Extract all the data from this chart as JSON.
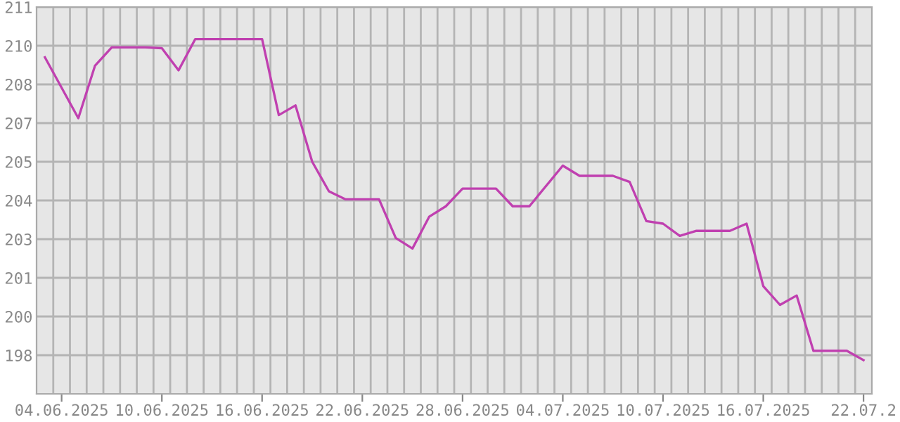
{
  "chart_data": {
    "type": "line",
    "x": [
      "2025-06-03",
      "2025-06-05",
      "2025-06-06",
      "2025-06-07",
      "2025-06-09",
      "2025-06-10",
      "2025-06-11",
      "2025-06-12",
      "2025-06-16",
      "2025-06-17",
      "2025-06-18",
      "2025-06-19",
      "2025-06-20",
      "2025-06-21",
      "2025-06-23",
      "2025-06-24",
      "2025-06-25",
      "2025-06-26",
      "2025-06-27",
      "2025-06-28",
      "2025-06-30",
      "2025-07-01",
      "2025-07-02",
      "2025-07-04",
      "2025-07-05",
      "2025-07-07",
      "2025-07-08",
      "2025-07-09",
      "2025-07-10",
      "2025-07-11",
      "2025-07-12",
      "2025-07-14",
      "2025-07-15",
      "2025-07-16",
      "2025-07-17",
      "2025-07-18",
      "2025-07-19",
      "2025-07-21",
      "2025-07-22"
    ],
    "series": [
      {
        "color": "#c040b0",
        "values": [
          209.08,
          206.88,
          208.78,
          209.44,
          209.44,
          209.41,
          208.61,
          209.74,
          209.74,
          206.99,
          207.34,
          205.3,
          204.23,
          203.94,
          203.94,
          202.54,
          202.16,
          203.31,
          203.69,
          204.33,
          204.33,
          203.69,
          203.69,
          205.16,
          204.79,
          204.79,
          204.57,
          203.15,
          203.06,
          202.62,
          202.8,
          202.8,
          203.06,
          200.8,
          200.12,
          200.46,
          198.46,
          198.46,
          198.12
        ]
      }
    ],
    "ylim": [
      196.9,
      210.9
    ],
    "yticks": [
      {
        "value": 210.9,
        "label": "211"
      },
      {
        "value": 209.5,
        "label": "210"
      },
      {
        "value": 208.1,
        "label": "208"
      },
      {
        "value": 206.7,
        "label": "207"
      },
      {
        "value": 205.3,
        "label": "205"
      },
      {
        "value": 203.9,
        "label": "204"
      },
      {
        "value": 202.5,
        "label": "203"
      },
      {
        "value": 201.1,
        "label": "201"
      },
      {
        "value": 199.7,
        "label": "200"
      },
      {
        "value": 198.3,
        "label": "198"
      }
    ],
    "xlim": [
      "2025-06-02T12:00",
      "2025-07-22T12:00"
    ],
    "xticks": [
      {
        "value": "2025-06-04",
        "label": "04.06.2025"
      },
      {
        "value": "2025-06-10",
        "label": "10.06.2025"
      },
      {
        "value": "2025-06-16",
        "label": "16.06.2025"
      },
      {
        "value": "2025-06-22",
        "label": "22.06.2025"
      },
      {
        "value": "2025-06-28",
        "label": "28.06.2025"
      },
      {
        "value": "2025-07-04",
        "label": "04.07.2025"
      },
      {
        "value": "2025-07-10",
        "label": "10.07.2025"
      },
      {
        "value": "2025-07-16",
        "label": "16.07.2025"
      },
      {
        "value": "2025-07-22",
        "label": "22.07.2"
      },
      {
        "value": "2025-06-03T12:00",
        "label": null
      },
      {
        "value": "2025-06-04T12:00",
        "label": null
      },
      {
        "value": "2025-06-05T12:00",
        "label": null
      },
      {
        "value": "2025-06-06T12:00",
        "label": null
      },
      {
        "value": "2025-06-07T12:00",
        "label": null
      },
      {
        "value": "2025-06-08T12:00",
        "label": null
      },
      {
        "value": "2025-06-09T12:00",
        "label": null
      },
      {
        "value": "2025-06-10T12:00",
        "label": null
      },
      {
        "value": "2025-06-11T12:00",
        "label": null
      },
      {
        "value": "2025-06-12T12:00",
        "label": null
      },
      {
        "value": "2025-06-13T12:00",
        "label": null
      },
      {
        "value": "2025-06-14T12:00",
        "label": null
      },
      {
        "value": "2025-06-15T12:00",
        "label": null
      },
      {
        "value": "2025-06-16T12:00",
        "label": null
      },
      {
        "value": "2025-06-17T12:00",
        "label": null
      },
      {
        "value": "2025-06-18T12:00",
        "label": null
      },
      {
        "value": "2025-06-19T12:00",
        "label": null
      },
      {
        "value": "2025-06-20T12:00",
        "label": null
      },
      {
        "value": "2025-06-21T12:00",
        "label": null
      },
      {
        "value": "2025-06-22T12:00",
        "label": null
      },
      {
        "value": "2025-06-23T12:00",
        "label": null
      },
      {
        "value": "2025-06-24T12:00",
        "label": null
      },
      {
        "value": "2025-06-25T12:00",
        "label": null
      },
      {
        "value": "2025-06-26T12:00",
        "label": null
      },
      {
        "value": "2025-06-27T12:00",
        "label": null
      },
      {
        "value": "2025-06-28T12:00",
        "label": null
      },
      {
        "value": "2025-06-29T12:00",
        "label": null
      },
      {
        "value": "2025-06-30T12:00",
        "label": null
      },
      {
        "value": "2025-07-01T12:00",
        "label": null
      },
      {
        "value": "2025-07-02T12:00",
        "label": null
      },
      {
        "value": "2025-07-03T12:00",
        "label": null
      },
      {
        "value": "2025-07-04T12:00",
        "label": null
      },
      {
        "value": "2025-07-05T12:00",
        "label": null
      },
      {
        "value": "2025-07-06T12:00",
        "label": null
      },
      {
        "value": "2025-07-07T12:00",
        "label": null
      },
      {
        "value": "2025-07-08T12:00",
        "label": null
      },
      {
        "value": "2025-07-09T12:00",
        "label": null
      },
      {
        "value": "2025-07-10T12:00",
        "label": null
      },
      {
        "value": "2025-07-11T12:00",
        "label": null
      },
      {
        "value": "2025-07-12T12:00",
        "label": null
      },
      {
        "value": "2025-07-13T12:00",
        "label": null
      },
      {
        "value": "2025-07-14T12:00",
        "label": null
      },
      {
        "value": "2025-07-15T12:00",
        "label": null
      },
      {
        "value": "2025-07-16T12:00",
        "label": null
      },
      {
        "value": "2025-07-17T12:00",
        "label": null
      },
      {
        "value": "2025-07-18T12:00",
        "label": null
      },
      {
        "value": "2025-07-19T12:00",
        "label": null
      },
      {
        "value": "2025-07-20T12:00",
        "label": null
      },
      {
        "value": "2025-07-21T12:00",
        "label": null
      }
    ],
    "grid": true,
    "marker": "none",
    "line_style": "solid",
    "legend": false
  }
}
